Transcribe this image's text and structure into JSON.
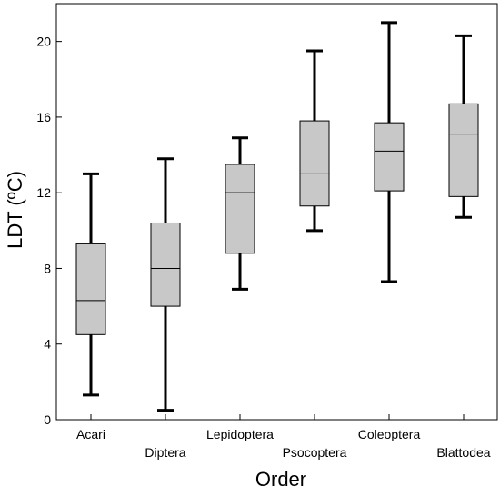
{
  "chart_data": {
    "type": "box",
    "title": "",
    "xlabel": "Order",
    "ylabel": "LDT (ºC)",
    "ylim": [
      0,
      22
    ],
    "yticks": [
      0,
      4,
      8,
      12,
      16,
      20
    ],
    "grid": false,
    "legend": "none",
    "box_fill": "#c8c8c8",
    "stroke_color": "#000000",
    "categories": [
      "Acari",
      "Diptera",
      "Lepidoptera",
      "Psocoptera",
      "Coleoptera",
      "Blattodea"
    ],
    "boxes": [
      {
        "category": "Acari",
        "min": 1.3,
        "q1": 4.5,
        "median": 6.3,
        "q3": 9.3,
        "max": 13.0
      },
      {
        "category": "Diptera",
        "min": 0.5,
        "q1": 6.0,
        "median": 8.0,
        "q3": 10.4,
        "max": 13.8
      },
      {
        "category": "Lepidoptera",
        "min": 6.9,
        "q1": 8.8,
        "median": 12.0,
        "q3": 13.5,
        "max": 14.9
      },
      {
        "category": "Psocoptera",
        "min": 10.0,
        "q1": 11.3,
        "median": 13.0,
        "q3": 15.8,
        "max": 19.5
      },
      {
        "category": "Coleoptera",
        "min": 7.3,
        "q1": 12.1,
        "median": 14.2,
        "q3": 15.7,
        "max": 21.0
      },
      {
        "category": "Blattodea",
        "min": 10.7,
        "q1": 11.8,
        "median": 15.1,
        "q3": 16.7,
        "max": 20.3
      }
    ]
  }
}
